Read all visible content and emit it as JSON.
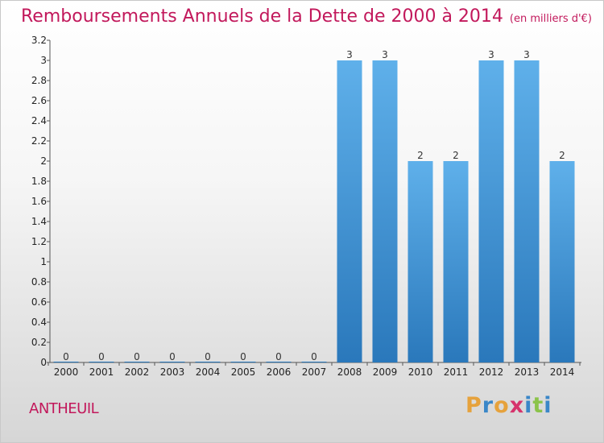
{
  "chart_data": {
    "type": "bar",
    "title": "Remboursements Annuels de la Dette de 2000 à 2014",
    "unit": "(en milliers d'€)",
    "categories": [
      "2000",
      "2001",
      "2002",
      "2003",
      "2004",
      "2005",
      "2006",
      "2007",
      "2008",
      "2009",
      "2010",
      "2011",
      "2012",
      "2013",
      "2014"
    ],
    "values": [
      0,
      0,
      0,
      0,
      0,
      0,
      0,
      0,
      3,
      3,
      2,
      2,
      3,
      3,
      2
    ],
    "data_labels": [
      "0",
      "0",
      "0",
      "0",
      "0",
      "0",
      "0",
      "0",
      "3",
      "3",
      "2",
      "2",
      "3",
      "3",
      "2"
    ],
    "y_ticks": [
      "0",
      "0.2",
      "0.4",
      "0.6",
      "0.8",
      "1",
      "1.2",
      "1.4",
      "1.6",
      "1.8",
      "2",
      "2.2",
      "2.4",
      "2.6",
      "2.8",
      "3",
      "3.2"
    ],
    "ylim": [
      0,
      3.2
    ],
    "xlabel": "",
    "ylabel": "",
    "bar_color": "#3d8fd4",
    "text_color": "#c2185b"
  },
  "footer": {
    "location": "ANTHEUIL",
    "brand_letters": [
      "P",
      "r",
      "o",
      "x",
      "i",
      "t",
      "i"
    ],
    "brand_colors": [
      "#e6a23c",
      "#3a87c8",
      "#e6a23c",
      "#d6336c",
      "#3a87c8",
      "#8bc34a",
      "#3a87c8"
    ]
  }
}
